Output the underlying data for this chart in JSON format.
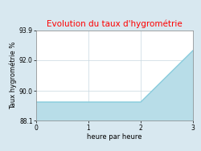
{
  "title": "Evolution du taux d'hygrométrie",
  "title_color": "#ff0000",
  "xlabel": "heure par heure",
  "ylabel": "Taux hygrométrie %",
  "background_color": "#d8e8f0",
  "plot_bg_color": "#ffffff",
  "line_color": "#88ccdd",
  "fill_color": "#b8dde8",
  "x": [
    0,
    2,
    2,
    3
  ],
  "y": [
    89.3,
    89.3,
    89.3,
    92.6
  ],
  "ylim": [
    88.1,
    93.9
  ],
  "xlim": [
    0,
    3
  ],
  "yticks": [
    88.1,
    90.0,
    92.0,
    93.9
  ],
  "xticks": [
    0,
    1,
    2,
    3
  ],
  "grid_color": "#c8d8e0",
  "linewidth": 1.0,
  "title_fontsize": 7.5,
  "label_fontsize": 6,
  "tick_fontsize": 5.5
}
